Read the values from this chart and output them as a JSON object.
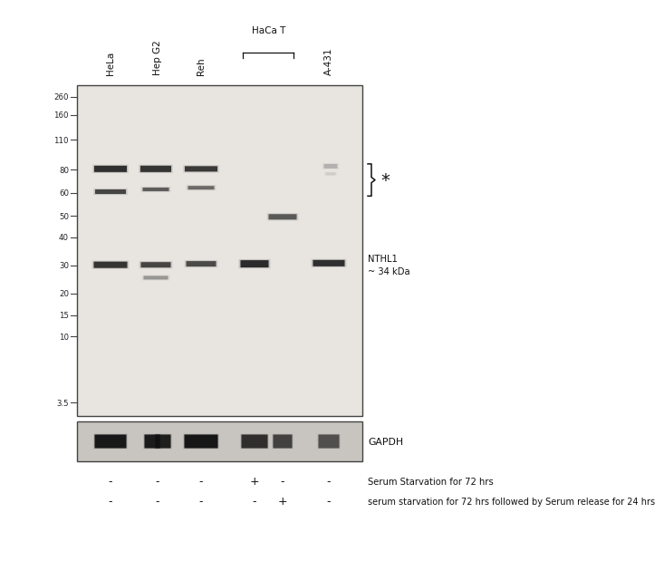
{
  "bg_color": "#ffffff",
  "panel_bg": "#e8e5e0",
  "panel_border": "#444444",
  "gapdh_bg": "#c8c5c0",
  "mw_data": [
    [
      260,
      0.035
    ],
    [
      160,
      0.09
    ],
    [
      110,
      0.165
    ],
    [
      80,
      0.255
    ],
    [
      60,
      0.325
    ],
    [
      50,
      0.395
    ],
    [
      40,
      0.46
    ],
    [
      30,
      0.545
    ],
    [
      20,
      0.63
    ],
    [
      15,
      0.695
    ],
    [
      10,
      0.76
    ],
    [
      3.5,
      0.96
    ]
  ],
  "col_labels": [
    "HeLa",
    "Hep G2",
    "Reh",
    "HaCa T",
    "A-431"
  ],
  "bottom_label1": "Serum Starvation for 72 hrs",
  "bottom_label2": "serum starvation for 72 hrs followed by Serum release for 24 hrs",
  "gapdh_label": "GAPDH",
  "nthl1_label": "NTHL1\n~ 34 kDa",
  "star_label": "*"
}
